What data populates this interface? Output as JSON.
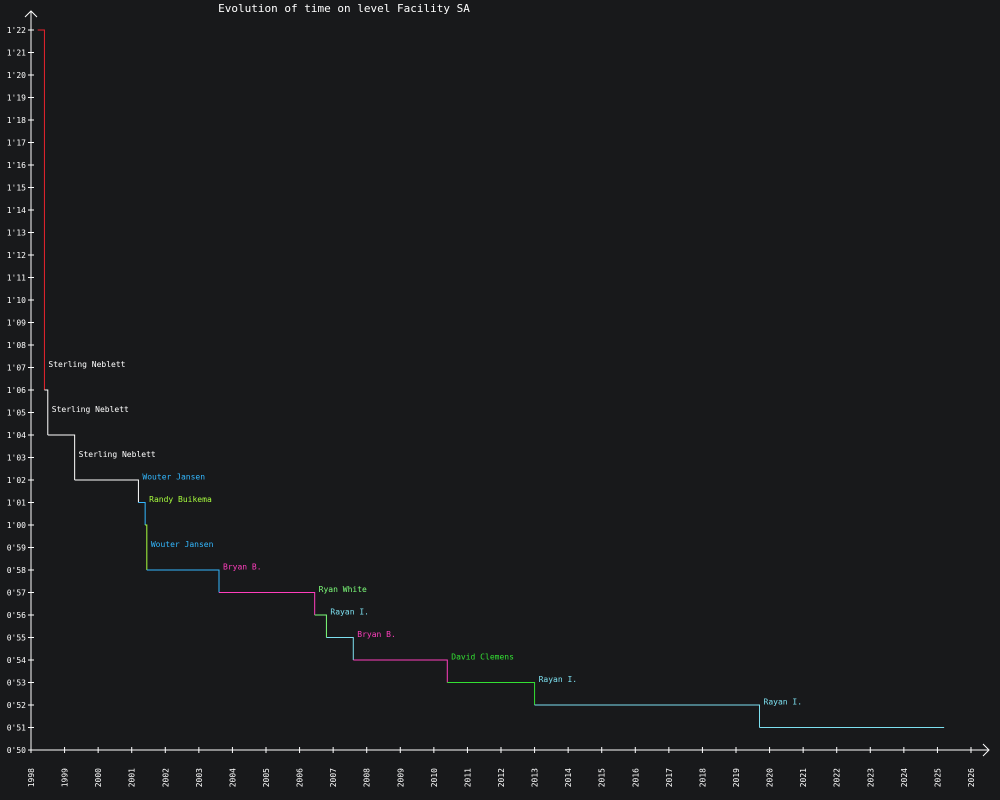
{
  "chart_data": {
    "type": "line",
    "title": "Evolution of time on level Facility SA",
    "xlabel": "",
    "ylabel": "",
    "x_range": [
      1998,
      2026
    ],
    "y_range_seconds": [
      50,
      82
    ],
    "x_ticks": [
      "1998",
      "1999",
      "2000",
      "2001",
      "2002",
      "2003",
      "2004",
      "2005",
      "2006",
      "2007",
      "2008",
      "2009",
      "2010",
      "2011",
      "2012",
      "2013",
      "2014",
      "2015",
      "2016",
      "2017",
      "2018",
      "2019",
      "2020",
      "2021",
      "2022",
      "2023",
      "2024",
      "2025",
      "2026"
    ],
    "y_ticks": [
      "0'50",
      "0'51",
      "0'52",
      "0'53",
      "0'54",
      "0'55",
      "0'56",
      "0'57",
      "0'58",
      "0'59",
      "1'00",
      "1'01",
      "1'02",
      "1'03",
      "1'04",
      "1'05",
      "1'06",
      "1'07",
      "1'08",
      "1'09",
      "1'10",
      "1'11",
      "1'12",
      "1'13",
      "1'14",
      "1'15",
      "1'16",
      "1'17",
      "1'18",
      "1'19",
      "1'20",
      "1'21",
      "1'22"
    ],
    "records": [
      {
        "holder": "",
        "start": 1998.2,
        "seconds": 82,
        "color": "#e8242e"
      },
      {
        "holder": "Sterling Neblett",
        "start": 1998.4,
        "seconds": 66,
        "color": "#ffffff"
      },
      {
        "holder": "Sterling Neblett",
        "start": 1998.5,
        "seconds": 64,
        "color": "#ffffff"
      },
      {
        "holder": "Sterling Neblett",
        "start": 1999.3,
        "seconds": 62,
        "color": "#ffffff"
      },
      {
        "holder": "Wouter Jansen",
        "start": 2001.2,
        "seconds": 61,
        "color": "#33b8ff"
      },
      {
        "holder": "Randy Buikema",
        "start": 2001.4,
        "seconds": 60,
        "color": "#a8ff3e"
      },
      {
        "holder": "Wouter Jansen",
        "start": 2001.45,
        "seconds": 58,
        "color": "#33b8ff"
      },
      {
        "holder": "Bryan B.",
        "start": 2003.6,
        "seconds": 57,
        "color": "#ff3ebd"
      },
      {
        "holder": "Ryan White",
        "start": 2006.45,
        "seconds": 56,
        "color": "#7dff7a"
      },
      {
        "holder": "Rayan I.",
        "start": 2006.8,
        "seconds": 55,
        "color": "#7de0f0"
      },
      {
        "holder": "Bryan B.",
        "start": 2007.6,
        "seconds": 54,
        "color": "#ff3ebd"
      },
      {
        "holder": "David Clemens",
        "start": 2010.4,
        "seconds": 53,
        "color": "#33e033"
      },
      {
        "holder": "Rayan I.",
        "start": 2013.0,
        "seconds": 52,
        "color": "#7de0f0"
      },
      {
        "holder": "Rayan I.",
        "start": 2019.7,
        "seconds": 51,
        "color": "#7de0f0"
      }
    ],
    "end": 2025.2,
    "grid": false,
    "legend": "none"
  }
}
